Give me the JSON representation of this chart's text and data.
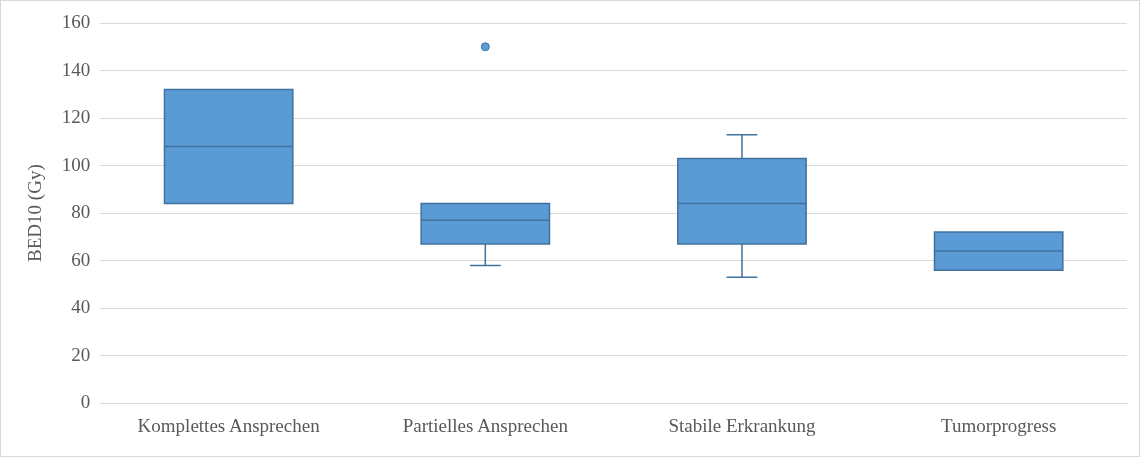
{
  "chart_data": {
    "type": "box",
    "ylabel": "BED10 (Gy)",
    "categories": [
      "Komplettes Ansprechen",
      "Partielles Ansprechen",
      "Stabile Erkrankung",
      "Tumorprogress"
    ],
    "boxes": [
      {
        "low": 84,
        "q1": 84,
        "median": 108,
        "q3": 132,
        "high": 132
      },
      {
        "low": 58,
        "q1": 67,
        "median": 77,
        "q3": 84,
        "high": 84,
        "outliers": [
          150
        ]
      },
      {
        "low": 53,
        "q1": 67,
        "median": 84,
        "q3": 103,
        "high": 113
      },
      {
        "low": 56,
        "q1": 56,
        "median": 64,
        "q3": 72,
        "high": 72
      }
    ],
    "color": "#5b9bd5",
    "ylim": [
      0,
      160
    ],
    "yticks": [
      0,
      20,
      40,
      60,
      80,
      100,
      120,
      140,
      160
    ],
    "grid": "y"
  }
}
